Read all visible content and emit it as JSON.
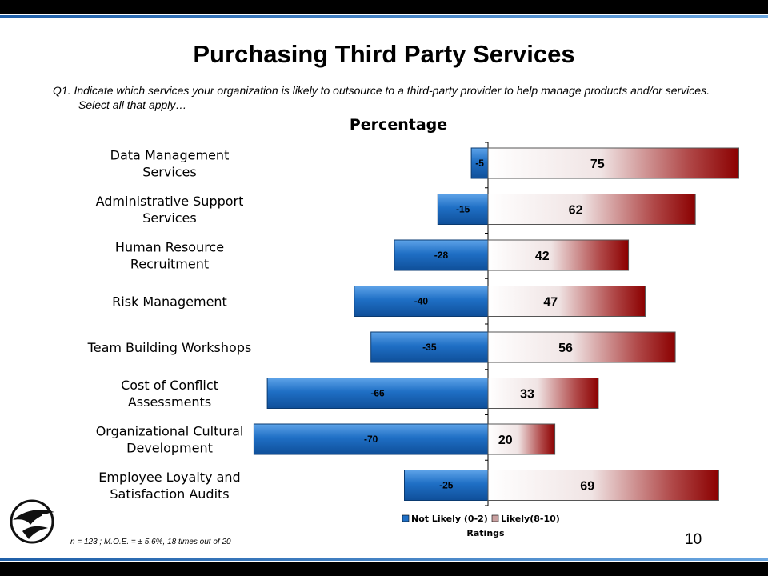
{
  "slide": {
    "title": "Purchasing Third Party Services",
    "question": "Q1.  Indicate which services your organization is likely to outsource to a third-party provider to help manage products and/or services.  Select all that apply…",
    "footnote": "n = 123 ;  M.O.E. = ± 5.6%, 18 times out of 20",
    "page_number": "10",
    "logo_icon": "hawk-logo-icon"
  },
  "chart_data": {
    "type": "bar",
    "orientation": "horizontal-diverging",
    "title": "Percentage",
    "xlabel": "Ratings",
    "categories": [
      [
        "Data Management",
        "Services"
      ],
      [
        "Administrative Support",
        "Services"
      ],
      [
        "Human Resource",
        "Recruitment"
      ],
      [
        "Risk Management"
      ],
      [
        "Team Building Workshops"
      ],
      [
        "Cost of Conflict",
        "Assessments"
      ],
      [
        "Organizational Cultural",
        "Development"
      ],
      [
        "Employee Loyalty and",
        "Satisfaction Audits"
      ]
    ],
    "series": [
      {
        "name": "Not Likely (0-2)",
        "values": [
          -5,
          -15,
          -28,
          -40,
          -35,
          -66,
          -70,
          -25
        ],
        "color": "#1f6fc5"
      },
      {
        "name": "Likely(8-10)",
        "values": [
          75,
          62,
          42,
          47,
          56,
          33,
          20,
          69
        ],
        "color": "#8b0000"
      }
    ],
    "legend_position": "bottom"
  }
}
